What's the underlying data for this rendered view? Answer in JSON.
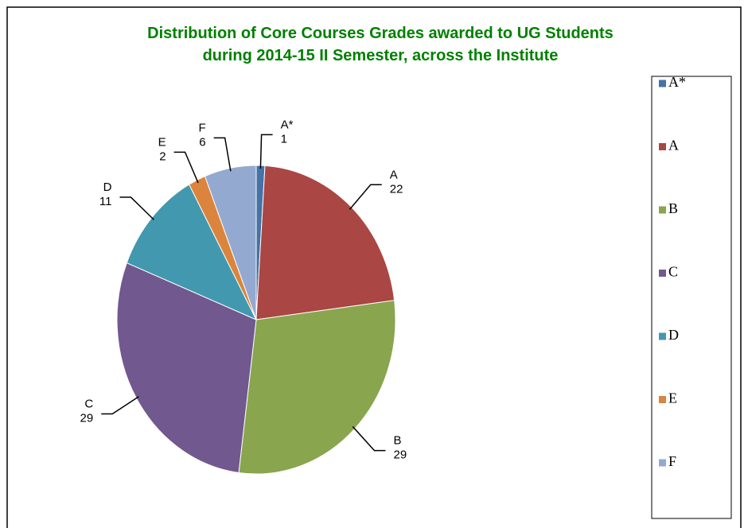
{
  "chart_data": {
    "type": "pie",
    "title": [
      "Distribution of Core Courses Grades awarded to UG Students",
      "during 2014-15 II Semester, across the Institute"
    ],
    "categories": [
      "A*",
      "A",
      "B",
      "C",
      "D",
      "E",
      "F"
    ],
    "values": [
      1,
      22,
      29,
      29,
      11,
      2,
      6
    ],
    "colors": [
      "#4572a7",
      "#aa4643",
      "#89a54e",
      "#71588f",
      "#4198af",
      "#db843d",
      "#93a9cf"
    ],
    "legend": "right"
  }
}
